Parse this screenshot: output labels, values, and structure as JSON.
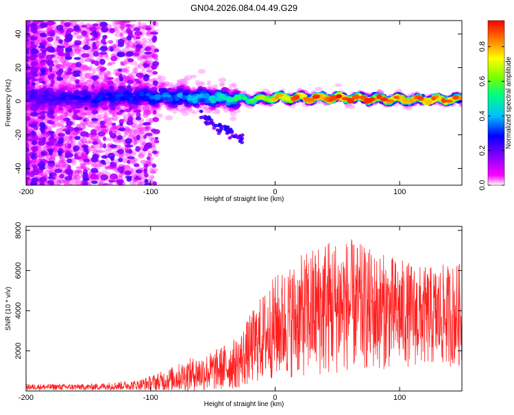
{
  "chart_data": [
    {
      "type": "heatmap",
      "title": "GN04.2026.084.04.49.G29",
      "xlabel": "Height of straight line (km)",
      "ylabel": "Frequency (Hz)",
      "xlim": [
        -200,
        150
      ],
      "ylim": [
        -50,
        48
      ],
      "xticks": [
        -200,
        -100,
        0,
        100
      ],
      "yticks": [
        -40,
        -20,
        0,
        20,
        40
      ],
      "colorbar": {
        "label": "Normalized spectral amplitude",
        "range": [
          0,
          0.95
        ],
        "ticks": [
          0.0,
          0.2,
          0.4,
          0.6,
          0.8
        ],
        "tick_labels": [
          "0.0",
          "0.2",
          "0.4",
          "0.6",
          "0.8"
        ],
        "colormap": [
          "#ffffff",
          "#ff00ff",
          "#8000ff",
          "#0000ff",
          "#00c0ff",
          "#00ff80",
          "#80ff00",
          "#ffff00",
          "#ff8000",
          "#ff0000"
        ]
      },
      "ridge": {
        "description_points": [
          {
            "x": -200,
            "freq": 2,
            "amplitude": 0.25
          },
          {
            "x": -150,
            "freq": 2,
            "amplitude": 0.3
          },
          {
            "x": -100,
            "freq": 3,
            "amplitude": 0.35
          },
          {
            "x": -50,
            "freq": 2,
            "amplitude": 0.45
          },
          {
            "x": -20,
            "freq": 1,
            "amplitude": 0.55
          },
          {
            "x": 0,
            "freq": 2,
            "amplitude": 0.8
          },
          {
            "x": 50,
            "freq": 2,
            "amplitude": 0.9
          },
          {
            "x": 100,
            "freq": 1,
            "amplitude": 0.85
          },
          {
            "x": 150,
            "freq": 1,
            "amplitude": 0.85
          }
        ]
      }
    },
    {
      "type": "line",
      "xlabel": "Height of straight line (km)",
      "ylabel": "SNR (10 * v/v)",
      "xlim": [
        -200,
        150
      ],
      "ylim": [
        0,
        8200
      ],
      "xticks": [
        -200,
        -100,
        0,
        100
      ],
      "yticks": [
        2000,
        4000,
        6000,
        8000
      ],
      "color": "#ff0000",
      "envelope": [
        {
          "x": -200,
          "mean": 200,
          "spread": 150
        },
        {
          "x": -150,
          "mean": 200,
          "spread": 150
        },
        {
          "x": -110,
          "mean": 300,
          "spread": 250
        },
        {
          "x": -90,
          "mean": 500,
          "spread": 500
        },
        {
          "x": -70,
          "mean": 800,
          "spread": 800
        },
        {
          "x": -50,
          "mean": 1000,
          "spread": 1000
        },
        {
          "x": -30,
          "mean": 1400,
          "spread": 1300
        },
        {
          "x": -15,
          "mean": 2400,
          "spread": 2000
        },
        {
          "x": 0,
          "mean": 3200,
          "spread": 2600
        },
        {
          "x": 20,
          "mean": 3700,
          "spread": 3000
        },
        {
          "x": 40,
          "mean": 4200,
          "spread": 3500
        },
        {
          "x": 60,
          "mean": 4300,
          "spread": 3300
        },
        {
          "x": 80,
          "mean": 4000,
          "spread": 3000
        },
        {
          "x": 100,
          "mean": 3900,
          "spread": 2700
        },
        {
          "x": 120,
          "mean": 3700,
          "spread": 2500
        },
        {
          "x": 150,
          "mean": 3800,
          "spread": 2600
        }
      ]
    }
  ]
}
